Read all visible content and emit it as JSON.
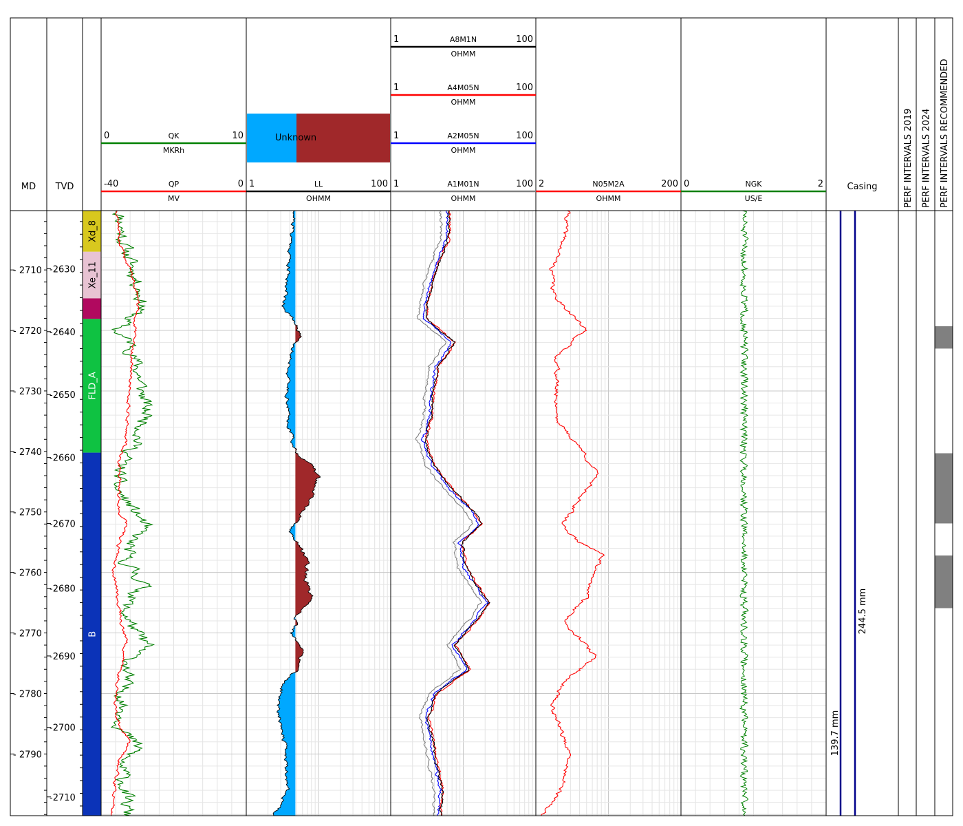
{
  "chart_data": {
    "type": "line",
    "depth_tracks": {
      "md": {
        "title": "MD",
        "ticks": [
          2710,
          2720,
          2730,
          2740,
          2750,
          2760,
          2770,
          2780,
          2790
        ],
        "range": [
          2700.2,
          2800.2
        ]
      },
      "tvd": {
        "title": "TVD",
        "ticks": [
          2630,
          2640,
          2650,
          2660,
          2670,
          2680,
          2690,
          2700,
          2710
        ]
      }
    },
    "zones": [
      {
        "name": "Xd_8",
        "top": 2700.2,
        "bottom": 2707.0,
        "color": "#d8c81e",
        "text_color": "#000000"
      },
      {
        "name": "Xe_11",
        "top": 2707.0,
        "bottom": 2714.7,
        "color": "#e8c3d3",
        "text_color": "#000000"
      },
      {
        "name": "",
        "top": 2714.7,
        "bottom": 2718.1,
        "color": "#b1095f",
        "text_color": "#ffffff"
      },
      {
        "name": "FLD_A",
        "top": 2718.1,
        "bottom": 2740.2,
        "color": "#0fc242",
        "text_color": "#ffffff"
      },
      {
        "name": "B",
        "top": 2740.2,
        "bottom": 2800.2,
        "color": "#0b33b8",
        "text_color": "#ffffff"
      }
    ],
    "tracks": [
      {
        "id": "sp",
        "curves": [
          {
            "name": "QK",
            "unit": "MKRh",
            "min": "0",
            "max": "10",
            "color": "#008000"
          },
          {
            "name": "QP",
            "unit": "MV",
            "min": "-40",
            "max": "0",
            "color": "#ff0000"
          }
        ]
      },
      {
        "id": "ll",
        "legend": "Unknown",
        "curves": [
          {
            "name": "LL",
            "unit": "OHMM",
            "min": "1",
            "max": "100",
            "color": "#000000"
          }
        ]
      },
      {
        "id": "res",
        "curves": [
          {
            "name": "A8M1N",
            "unit": "OHMM",
            "min": "1",
            "max": "100",
            "color": "#000000"
          },
          {
            "name": "A4M05N",
            "unit": "OHMM",
            "min": "1",
            "max": "100",
            "color": "#ff0000"
          },
          {
            "name": "A2M05N",
            "unit": "OHMM",
            "min": "1",
            "max": "100",
            "color": "#0000ff"
          },
          {
            "name": "A1M01N",
            "unit": "OHMM",
            "min": "1",
            "max": "100",
            "color": "#808080"
          }
        ]
      },
      {
        "id": "n05",
        "curves": [
          {
            "name": "N05M2A",
            "unit": "OHMM",
            "min": "2",
            "max": "200",
            "color": "#ff0000"
          }
        ]
      },
      {
        "id": "ngk",
        "curves": [
          {
            "name": "NGK",
            "unit": "US/E",
            "min": "0",
            "max": "2",
            "color": "#008000"
          }
        ]
      }
    ],
    "casing": {
      "title": "Casing",
      "strings": [
        {
          "label": "139.7 mm",
          "color": "#00008b"
        },
        {
          "label": "244.5 mm",
          "color": "#00008b"
        }
      ]
    },
    "perf_tracks": [
      {
        "title": "PERF INTERVALS 2019",
        "intervals": []
      },
      {
        "title": "PERF INTERVALS 2024",
        "intervals": []
      },
      {
        "title": "PERF INTERVALS RECOMMENDED",
        "intervals": [
          [
            2719.3,
            2723.0
          ],
          [
            2740.3,
            2751.9
          ],
          [
            2757.2,
            2765.9
          ]
        ],
        "color": "#808080"
      }
    ]
  }
}
